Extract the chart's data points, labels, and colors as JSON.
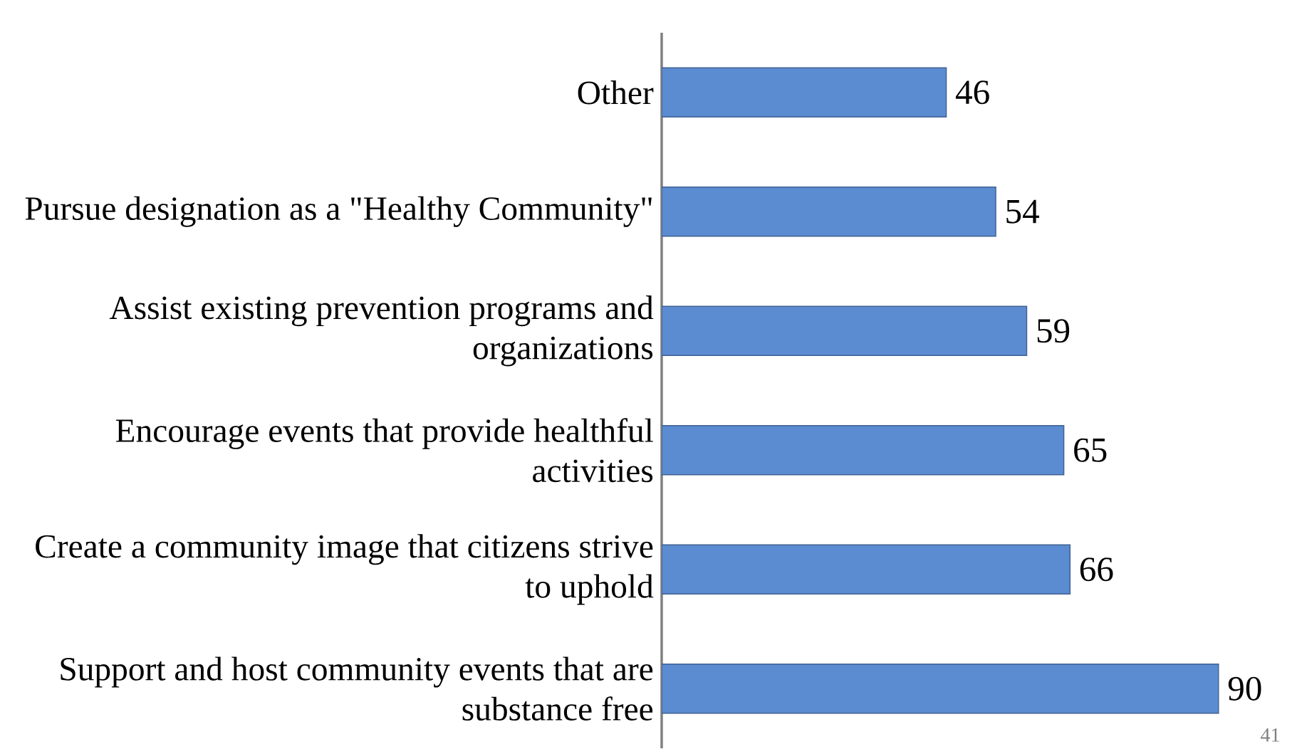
{
  "chart_data": {
    "type": "bar",
    "orientation": "horizontal",
    "categories": [
      "Other",
      "Pursue designation as a \"Healthy Community\"",
      "Assist existing prevention programs and organizations",
      "Encourage events that provide healthful activities",
      "Create a community image that citizens strive to uphold",
      "Support and host community events that are substance free"
    ],
    "values": [
      46,
      54,
      59,
      65,
      66,
      90
    ],
    "color": "#5b8bd0",
    "data_labels": true,
    "tick_labels": "y",
    "annotations": [
      "41"
    ]
  }
}
